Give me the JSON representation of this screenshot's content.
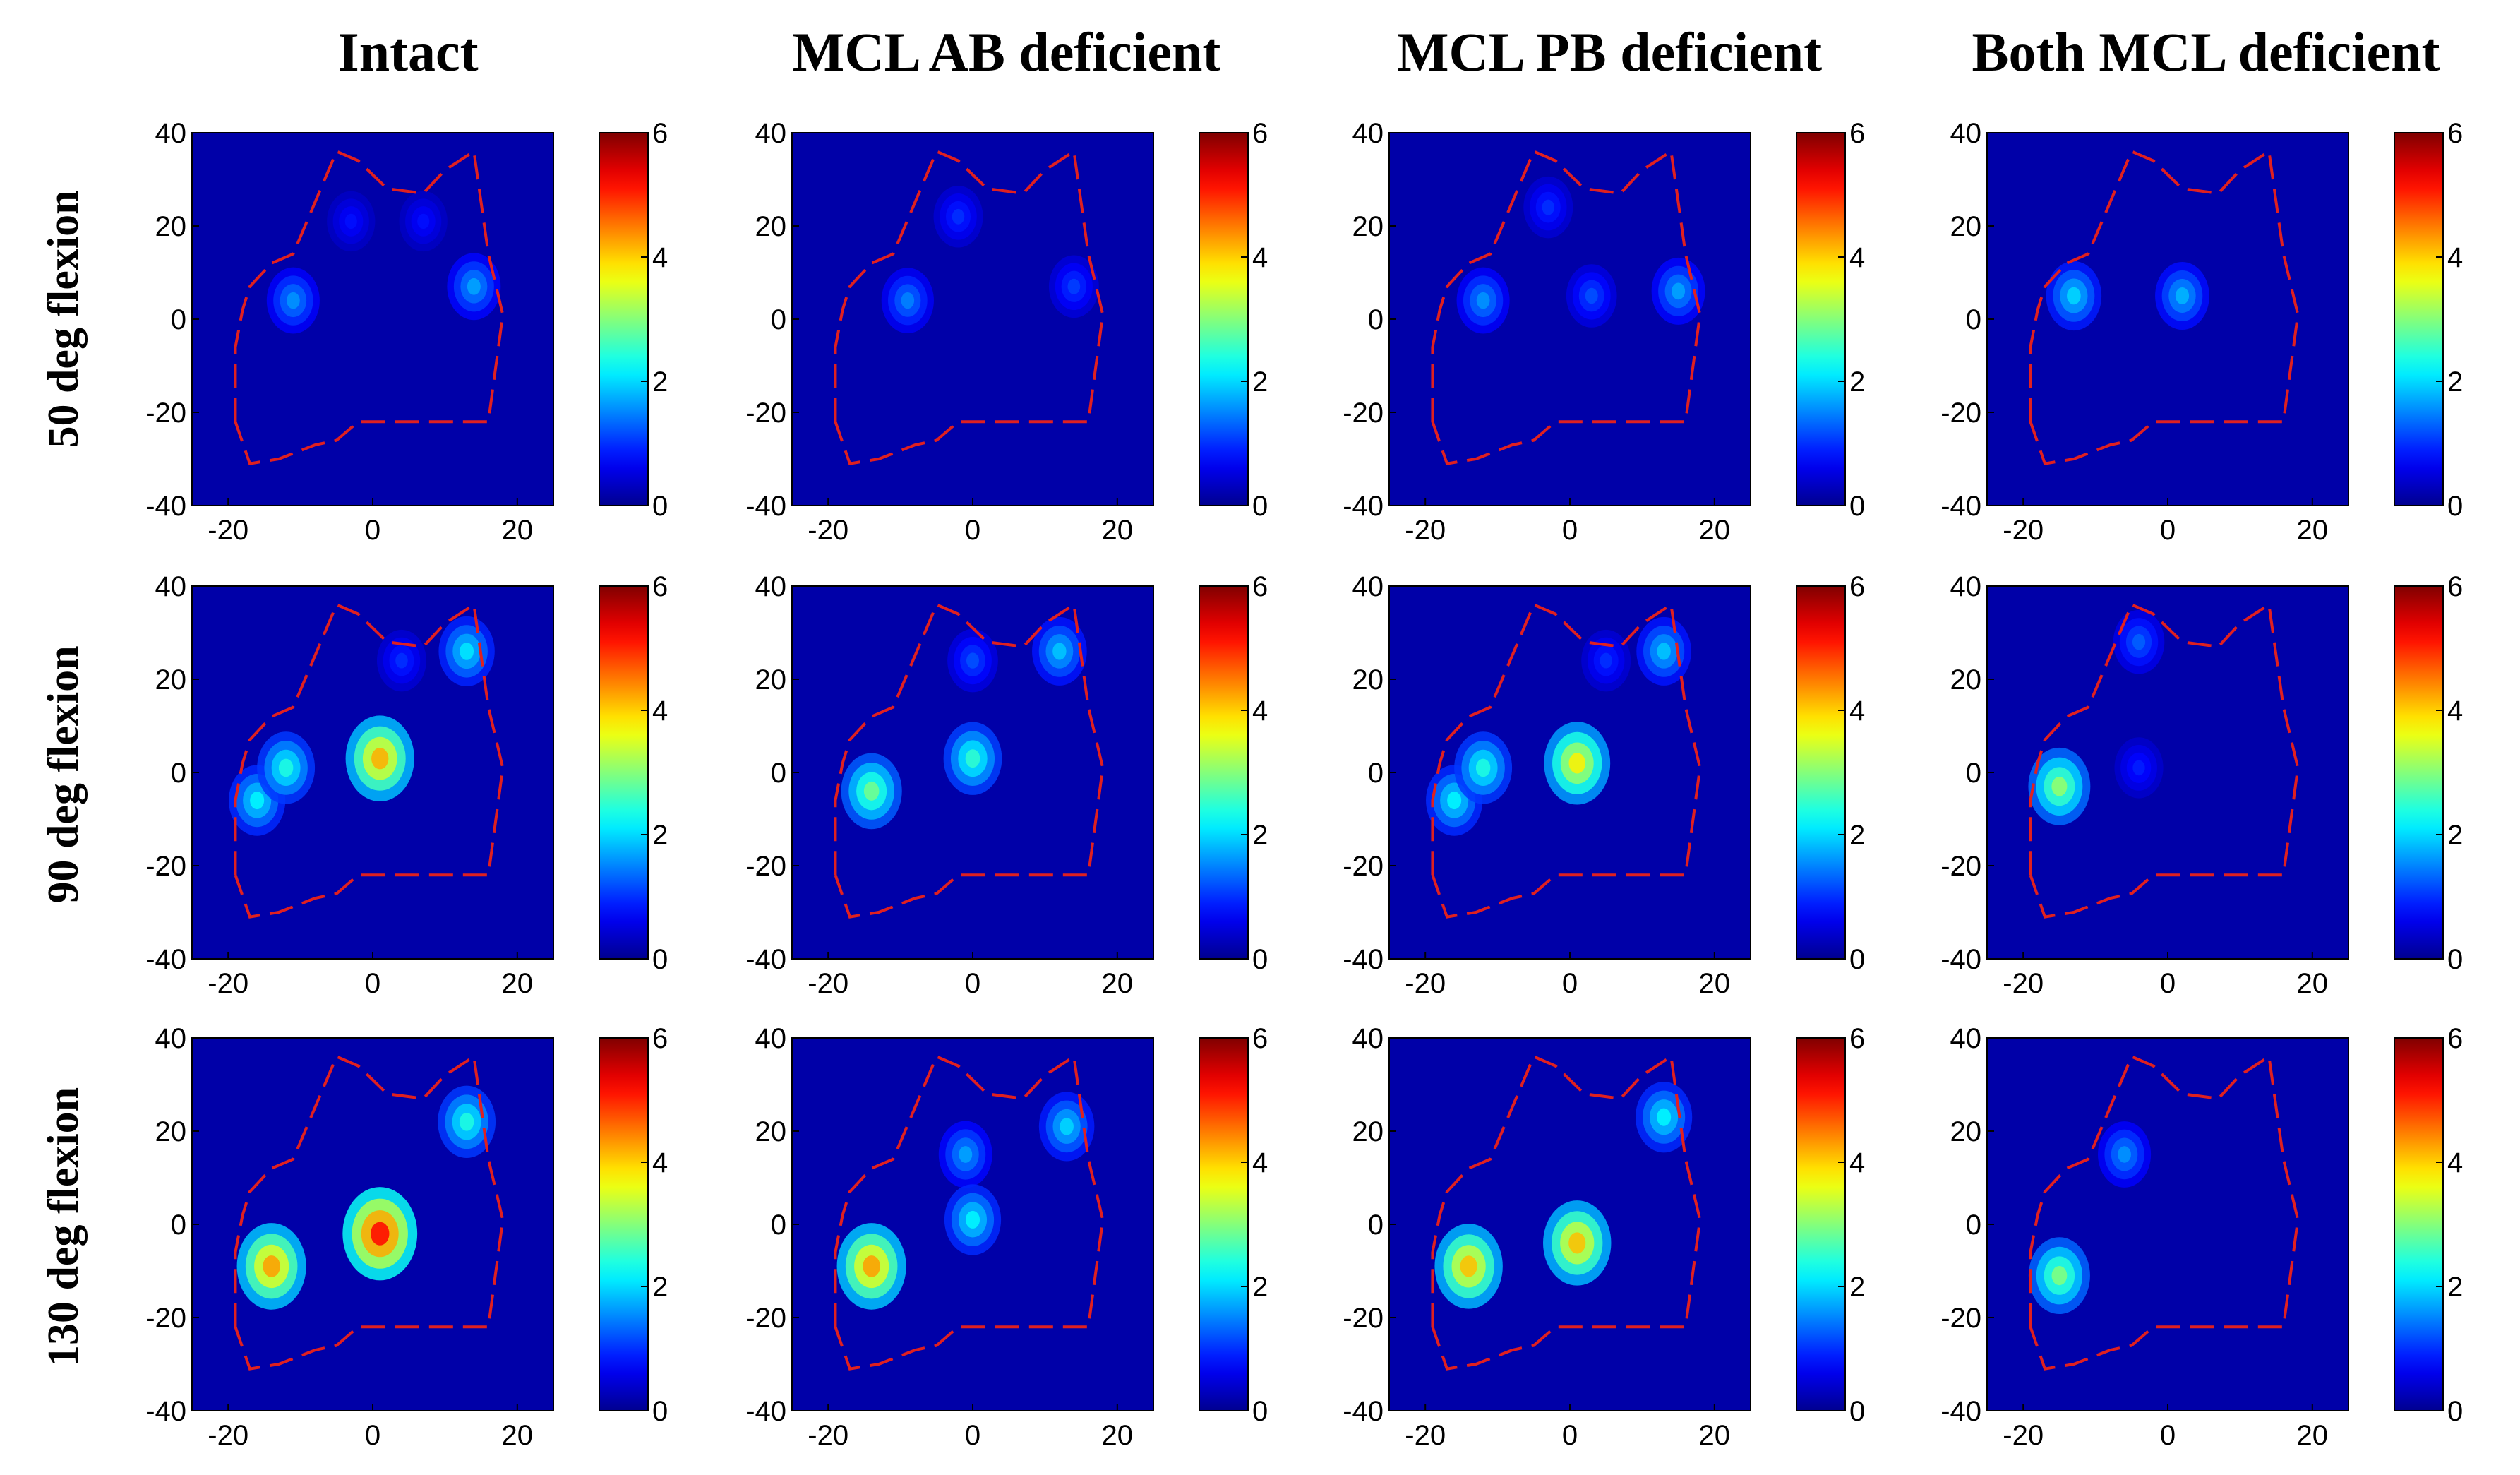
{
  "chart_data": {
    "type": "heatmap",
    "columns": [
      "Intact",
      "MCL AB deficient",
      "MCL PB deficient",
      "Both MCL deficient"
    ],
    "rows": [
      "50 deg flexion",
      "90 deg flexion",
      "130 deg flexion"
    ],
    "x_ticks": [
      "-20",
      "0",
      "20"
    ],
    "y_ticks": [
      "40",
      "20",
      "0",
      "-20",
      "-40"
    ],
    "xlim": [
      -25,
      25
    ],
    "ylim": [
      -40,
      40
    ],
    "colorbar": {
      "min": 0,
      "max": 6,
      "ticks": [
        "6",
        "4",
        "2",
        "0"
      ]
    },
    "colors": {
      "background": "#0000a8",
      "outline": "#e02020",
      "colormap": [
        "#00008f",
        "#0000ff",
        "#00ffff",
        "#ffff00",
        "#ff0000",
        "#800000"
      ]
    },
    "outline_xy": [
      [
        -19,
        -22
      ],
      [
        -19,
        -6
      ],
      [
        -18,
        2
      ],
      [
        -17,
        7
      ],
      [
        -14,
        12
      ],
      [
        -11,
        14
      ],
      [
        -5,
        36
      ],
      [
        -2,
        34
      ],
      [
        2,
        28
      ],
      [
        7,
        27
      ],
      [
        10,
        32
      ],
      [
        14,
        36
      ],
      [
        16,
        14
      ],
      [
        18,
        1
      ],
      [
        16,
        -22
      ],
      [
        5,
        -22
      ],
      [
        -2,
        -22
      ],
      [
        -5,
        -26
      ],
      [
        -8,
        -27
      ],
      [
        -13,
        -30
      ],
      [
        -17,
        -31
      ],
      [
        -19,
        -22
      ]
    ],
    "panels": [
      {
        "row": 0,
        "col": 0,
        "hotspots": [
          {
            "x": -11,
            "y": 4,
            "value": 1.6
          },
          {
            "x": 14,
            "y": 7,
            "value": 1.7
          },
          {
            "x": -3,
            "y": 21,
            "value": 0.8
          },
          {
            "x": 7,
            "y": 21,
            "value": 0.8
          }
        ]
      },
      {
        "row": 0,
        "col": 1,
        "hotspots": [
          {
            "x": -9,
            "y": 4,
            "value": 1.5
          },
          {
            "x": 14,
            "y": 7,
            "value": 1.1
          },
          {
            "x": -2,
            "y": 22,
            "value": 1.0
          }
        ]
      },
      {
        "row": 0,
        "col": 2,
        "hotspots": [
          {
            "x": -12,
            "y": 4,
            "value": 1.6
          },
          {
            "x": 3,
            "y": 5,
            "value": 1.2
          },
          {
            "x": 15,
            "y": 6,
            "value": 1.7
          },
          {
            "x": -3,
            "y": 24,
            "value": 1.0
          }
        ]
      },
      {
        "row": 0,
        "col": 3,
        "hotspots": [
          {
            "x": -13,
            "y": 5,
            "value": 2.0
          },
          {
            "x": 2,
            "y": 5,
            "value": 1.8
          }
        ]
      },
      {
        "row": 1,
        "col": 0,
        "hotspots": [
          {
            "x": -16,
            "y": -6,
            "value": 2.2
          },
          {
            "x": -12,
            "y": 1,
            "value": 2.4
          },
          {
            "x": 1,
            "y": 3,
            "value": 4.2
          },
          {
            "x": 13,
            "y": 26,
            "value": 2.1
          },
          {
            "x": 4,
            "y": 24,
            "value": 1.0
          }
        ]
      },
      {
        "row": 1,
        "col": 1,
        "hotspots": [
          {
            "x": -14,
            "y": -4,
            "value": 2.9
          },
          {
            "x": 0,
            "y": 3,
            "value": 2.5
          },
          {
            "x": 12,
            "y": 26,
            "value": 1.9
          },
          {
            "x": 0,
            "y": 24,
            "value": 1.2
          }
        ]
      },
      {
        "row": 1,
        "col": 2,
        "hotspots": [
          {
            "x": -16,
            "y": -6,
            "value": 2.2
          },
          {
            "x": -12,
            "y": 1,
            "value": 2.4
          },
          {
            "x": 1,
            "y": 2,
            "value": 3.8
          },
          {
            "x": 13,
            "y": 26,
            "value": 1.9
          },
          {
            "x": 5,
            "y": 24,
            "value": 1.0
          }
        ]
      },
      {
        "row": 1,
        "col": 3,
        "hotspots": [
          {
            "x": -15,
            "y": -3,
            "value": 3.1
          },
          {
            "x": -4,
            "y": 28,
            "value": 1.3
          },
          {
            "x": -4,
            "y": 1,
            "value": 0.9
          }
        ]
      },
      {
        "row": 2,
        "col": 0,
        "hotspots": [
          {
            "x": -14,
            "y": -9,
            "value": 4.3
          },
          {
            "x": 1,
            "y": -2,
            "value": 5.2
          },
          {
            "x": 13,
            "y": 22,
            "value": 2.4
          }
        ]
      },
      {
        "row": 2,
        "col": 1,
        "hotspots": [
          {
            "x": -14,
            "y": -9,
            "value": 4.3
          },
          {
            "x": 0,
            "y": 1,
            "value": 2.2
          },
          {
            "x": -1,
            "y": 15,
            "value": 1.7
          },
          {
            "x": 13,
            "y": 21,
            "value": 2.0
          }
        ]
      },
      {
        "row": 2,
        "col": 2,
        "hotspots": [
          {
            "x": -14,
            "y": -9,
            "value": 4.1
          },
          {
            "x": 1,
            "y": -4,
            "value": 4.1
          },
          {
            "x": 13,
            "y": 23,
            "value": 2.2
          }
        ]
      },
      {
        "row": 2,
        "col": 3,
        "hotspots": [
          {
            "x": -15,
            "y": -11,
            "value": 3.0
          },
          {
            "x": -6,
            "y": 15,
            "value": 1.6
          }
        ]
      }
    ]
  }
}
